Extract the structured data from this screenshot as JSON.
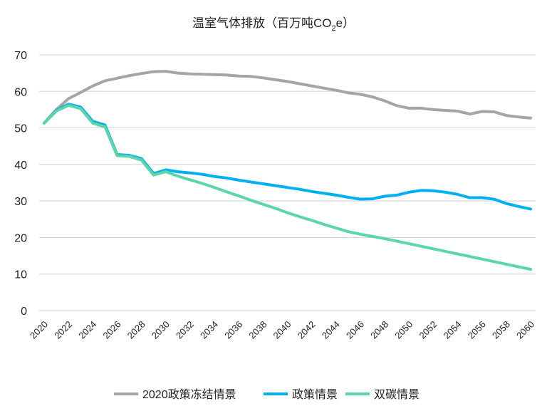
{
  "chart_data": {
    "type": "line",
    "title": "温室气体排放（百万吨CO",
    "title_sub": "2",
    "title_end": "e）",
    "xlabel": "",
    "ylabel": "",
    "ylim": [
      0,
      70
    ],
    "yticks": [
      0,
      10,
      20,
      30,
      40,
      50,
      60,
      70
    ],
    "xlim": [
      2020,
      2060
    ],
    "xtick_labels": [
      "2020",
      "2022",
      "2024",
      "2026",
      "2028",
      "2030",
      "2032",
      "2034",
      "2036",
      "2038",
      "2040",
      "2042",
      "2044",
      "2046",
      "2048",
      "2050",
      "2052",
      "2054",
      "2056",
      "2058",
      "2060"
    ],
    "grid": true,
    "legend_position": "bottom",
    "x": [
      2020,
      2021,
      2022,
      2023,
      2024,
      2025,
      2026,
      2027,
      2028,
      2029,
      2030,
      2031,
      2032,
      2033,
      2034,
      2035,
      2036,
      2037,
      2038,
      2039,
      2040,
      2041,
      2042,
      2043,
      2044,
      2045,
      2046,
      2047,
      2048,
      2049,
      2050,
      2051,
      2052,
      2053,
      2054,
      2055,
      2056,
      2057,
      2058,
      2059,
      2060
    ],
    "series": [
      {
        "name": "2020政策冻结情景",
        "color": "#A5A5A5",
        "values": [
          51.3,
          55,
          58,
          59.7,
          61.5,
          62.9,
          63.6,
          64.3,
          64.9,
          65.4,
          65.5,
          65,
          64.8,
          64.7,
          64.6,
          64.5,
          64.2,
          64.1,
          63.7,
          63.2,
          62.7,
          62.1,
          61.5,
          60.9,
          60.3,
          59.6,
          59.2,
          58.5,
          57.4,
          56.1,
          55.4,
          55.4,
          55,
          54.8,
          54.6,
          53.8,
          54.5,
          54.4,
          53.4,
          53,
          52.7
        ]
      },
      {
        "name": "政策情景",
        "color": "#00B0F0",
        "values": [
          51.3,
          54.8,
          56.5,
          55.7,
          51.8,
          50.8,
          42.7,
          42.5,
          41.6,
          37.5,
          38.5,
          38,
          37.7,
          37.3,
          36.7,
          36.3,
          35.7,
          35.2,
          34.7,
          34.2,
          33.7,
          33.2,
          32.6,
          32.1,
          31.6,
          31,
          30.5,
          30.6,
          31.3,
          31.6,
          32.4,
          32.9,
          32.8,
          32.4,
          31.8,
          30.9,
          30.9,
          30.5,
          29.3,
          28.5,
          27.8
        ]
      },
      {
        "name": "双碳情景",
        "color": "#5CD6A8",
        "values": [
          51.3,
          54.6,
          56.2,
          55.3,
          51.3,
          50.3,
          42.4,
          42.2,
          41.2,
          37.1,
          38,
          36.8,
          35.8,
          34.8,
          33.7,
          32.5,
          31.4,
          30.2,
          29.1,
          28,
          26.8,
          25.7,
          24.7,
          23.6,
          22.6,
          21.6,
          20.9,
          20.3,
          19.7,
          19,
          18.3,
          17.6,
          16.9,
          16.2,
          15.5,
          14.8,
          14.1,
          13.4,
          12.7,
          12,
          11.3
        ]
      }
    ]
  }
}
